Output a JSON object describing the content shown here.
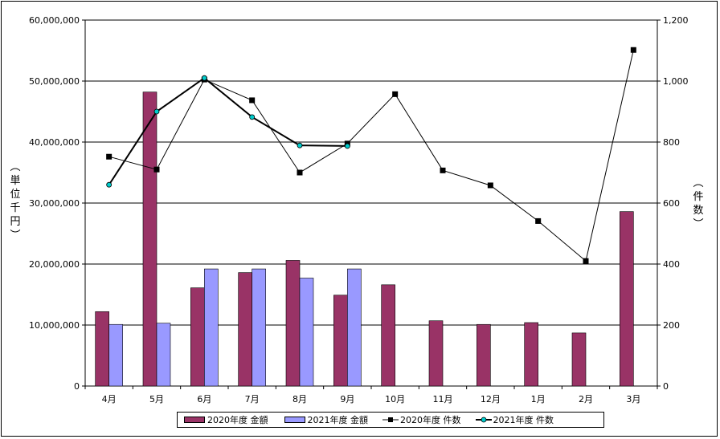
{
  "chart_data": {
    "type": "bar",
    "categories": [
      "4月",
      "5月",
      "6月",
      "7月",
      "8月",
      "9月",
      "10月",
      "11月",
      "12月",
      "1月",
      "2月",
      "3月"
    ],
    "y_left": {
      "label": [
        "単",
        "位",
        "千",
        "円"
      ],
      "paren_open": "︵",
      "paren_close": "︶",
      "ylim": [
        0,
        60000000
      ],
      "ticks": [
        "0",
        "10,000,000",
        "20,000,000",
        "30,000,000",
        "40,000,000",
        "50,000,000",
        "60,000,000"
      ]
    },
    "y_right": {
      "label": [
        "件",
        "数"
      ],
      "paren_open": "︵",
      "paren_close": "︶",
      "ylim": [
        0,
        1200
      ],
      "ticks": [
        "0",
        "200",
        "400",
        "600",
        "800",
        "1,000",
        "1,200"
      ]
    },
    "series": [
      {
        "name": "2020年度 金額",
        "kind": "bar",
        "axis": "left",
        "color": "#993366",
        "values": [
          12200000,
          48200000,
          16100000,
          18600000,
          20600000,
          14900000,
          16600000,
          10700000,
          10100000,
          10400000,
          8700000,
          28600000
        ]
      },
      {
        "name": "2021年度 金額",
        "kind": "bar",
        "axis": "left",
        "color": "#9999ff",
        "values": [
          10100000,
          10300000,
          19200000,
          19200000,
          17700000,
          19200000,
          null,
          null,
          null,
          null,
          null,
          null
        ]
      },
      {
        "name": "2020年度 件数",
        "kind": "line",
        "axis": "right",
        "color": "#000000",
        "marker": "square",
        "values": [
          752,
          710,
          1005,
          937,
          700,
          795,
          957,
          707,
          658,
          541,
          410,
          1102
        ]
      },
      {
        "name": "2021年度 件数",
        "kind": "line",
        "axis": "right",
        "color": "#000000",
        "marker": "circle",
        "marker_color": "#00cccc",
        "values": [
          660,
          900,
          1010,
          882,
          789,
          787,
          null,
          null,
          null,
          null,
          null,
          null
        ]
      }
    ],
    "grid": true,
    "legend_position": "bottom"
  }
}
